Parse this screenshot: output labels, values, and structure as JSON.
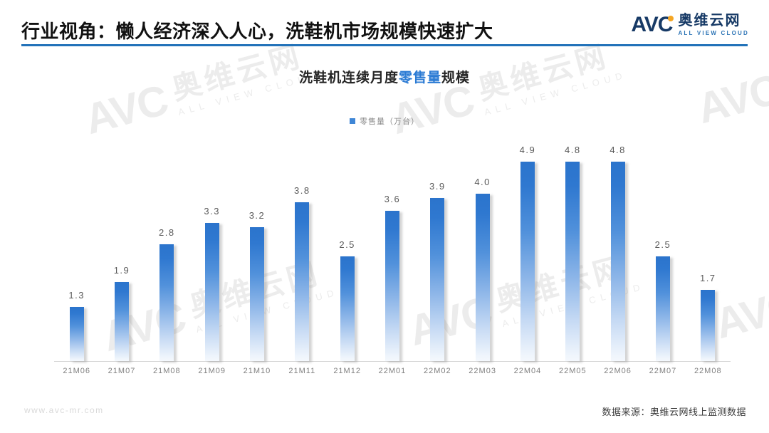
{
  "header": {
    "title": "行业视角：懒人经济深入人心，洗鞋机市场规模快速扩大",
    "logo": {
      "text": "AVC",
      "name": "奥维云网",
      "tagline": "ALL VIEW CLOUD"
    }
  },
  "chart": {
    "title_prefix": "洗鞋机连续月度",
    "title_highlight": "零售量",
    "title_suffix": "规模",
    "legend_label": "零售量（万台）"
  },
  "chart_data": {
    "type": "bar",
    "title": "洗鞋机连续月度零售量规模",
    "legend": [
      "零售量（万台）"
    ],
    "legend_position": "top-center",
    "categories": [
      "21M06",
      "21M07",
      "21M08",
      "21M09",
      "21M10",
      "21M11",
      "21M12",
      "22M01",
      "22M02",
      "22M03",
      "22M04",
      "22M05",
      "22M06",
      "22M07",
      "22M08"
    ],
    "values": [
      1.3,
      1.9,
      2.8,
      3.3,
      3.2,
      3.8,
      2.5,
      3.6,
      3.9,
      4.0,
      4.9,
      4.8,
      4.8,
      2.5,
      1.7
    ],
    "xlabel": "",
    "ylabel": "零售量（万台）",
    "ylim": [
      0,
      5.2
    ],
    "grid": false,
    "data_labels": true,
    "bar_color_top": "#2b74cc",
    "bar_color_bottom": "#f4f8fd"
  },
  "watermark": {
    "text": "AVC",
    "name": "奥维云网",
    "tagline": "ALL VIEW CLOUD"
  },
  "footer": {
    "website": "www.avc-mr.com",
    "source": "数据来源：奥维云网线上监测数据"
  },
  "colors": {
    "accent_blue": "#2b7bd4",
    "divider_blue": "#2272b9",
    "logo_navy": "#173a66",
    "logo_dot_orange": "#f5a623",
    "bar_blue": "#2b74cc"
  }
}
